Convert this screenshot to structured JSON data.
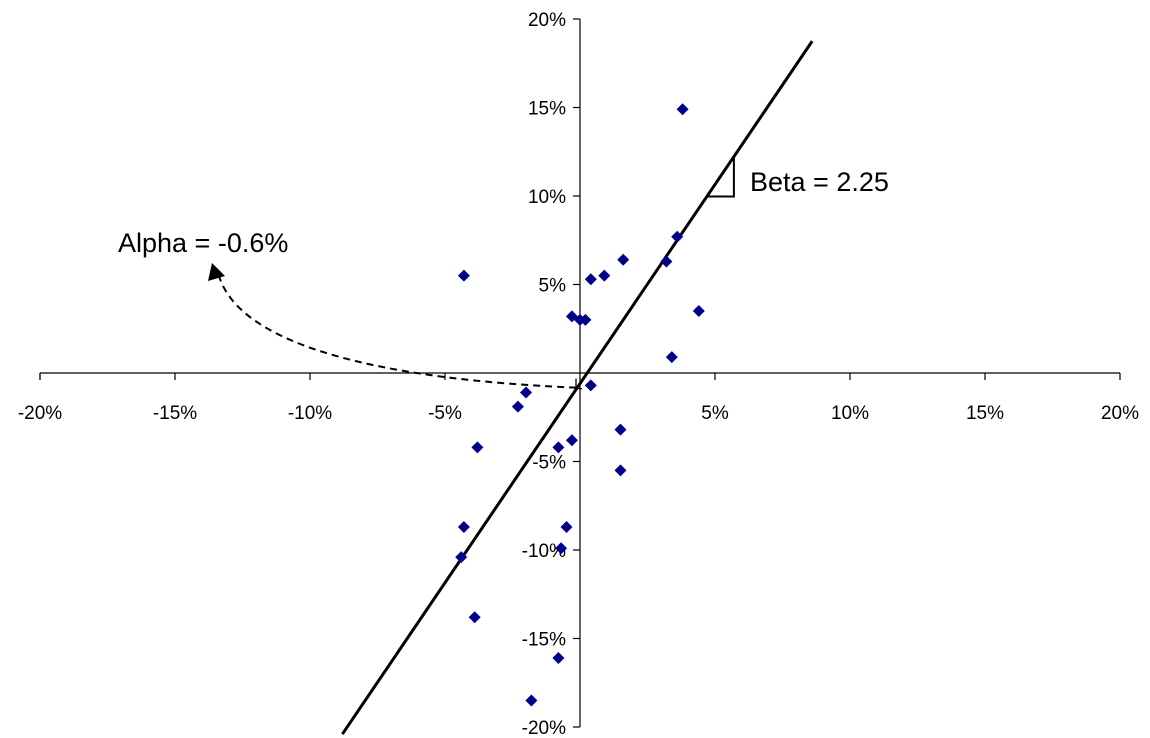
{
  "chart_data": {
    "type": "scatter",
    "title": "",
    "xlabel": "",
    "ylabel": "",
    "xlim": [
      -0.2,
      0.2
    ],
    "ylim": [
      -0.2,
      0.2
    ],
    "x_ticks": [
      -0.2,
      -0.15,
      -0.1,
      -0.05,
      0.05,
      0.1,
      0.15,
      0.2
    ],
    "x_tick_labels": [
      "-20%",
      "-15%",
      "-10%",
      "-5%",
      "5%",
      "10%",
      "15%",
      "20%"
    ],
    "y_ticks": [
      0.2,
      0.15,
      0.1,
      0.05,
      -0.05,
      -0.1,
      -0.15,
      -0.2
    ],
    "y_tick_labels": [
      "20%",
      "15%",
      "10%",
      "5%",
      "-5%",
      "-10%",
      "-15%",
      "-20%"
    ],
    "grid": false,
    "legend": "none",
    "marker_color": "#00008B",
    "series": [
      {
        "x": [
          0.038,
          -0.043,
          0.016,
          0.036,
          0.032,
          0.004,
          0.009,
          -0.003,
          0.0,
          0.002,
          0.044,
          0.034,
          0.004,
          -0.02,
          -0.023,
          -0.038,
          -0.003,
          -0.008,
          0.015,
          0.015,
          -0.043,
          -0.005,
          -0.044,
          -0.007,
          -0.039,
          -0.008,
          -0.018
        ],
        "y": [
          0.149,
          0.055,
          0.064,
          0.077,
          0.063,
          0.053,
          0.055,
          0.032,
          0.03,
          0.03,
          0.035,
          0.009,
          -0.007,
          -0.011,
          -0.019,
          -0.042,
          -0.038,
          -0.042,
          -0.032,
          -0.055,
          -0.087,
          -0.087,
          -0.104,
          -0.099,
          -0.138,
          -0.161,
          -0.185
        ]
      }
    ],
    "regression": {
      "alpha": -0.006,
      "beta": 2.25,
      "x_range": [
        -0.088,
        0.086
      ]
    },
    "annotations": {
      "beta_label": "Beta = 2.25",
      "alpha_label": "Alpha = -0.6%"
    }
  }
}
